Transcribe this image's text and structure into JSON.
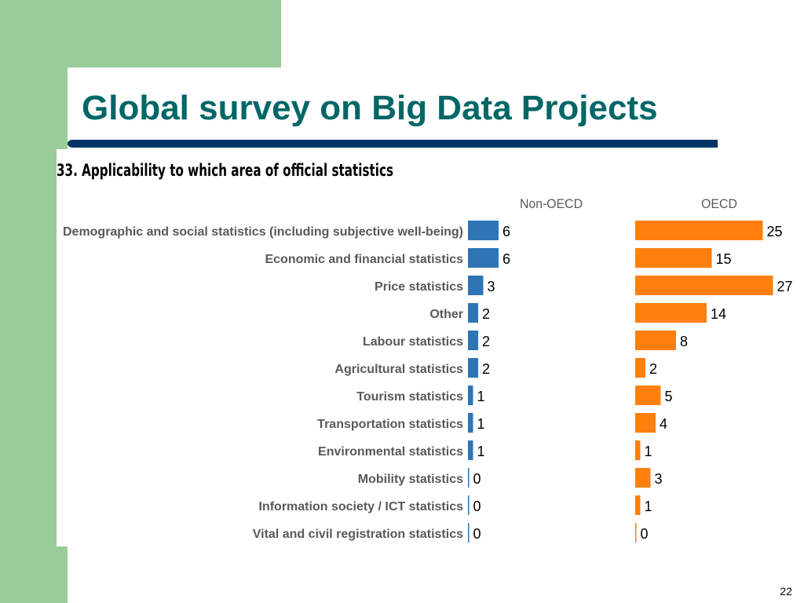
{
  "slide": {
    "title": "Global survey on Big Data Projects",
    "page_number": "22"
  },
  "colors": {
    "band": "#99cc99",
    "title": "#006666",
    "rule": "#003366",
    "non_oecd": "#2e75b6",
    "oecd": "#ff7f0e"
  },
  "chart_data": {
    "type": "bar",
    "orientation": "horizontal",
    "title": "33. Applicability to which area of official statistics",
    "categories": [
      "Demographic and social statistics (including subjective well-being)",
      "Economic and financial statistics",
      "Price statistics",
      "Other",
      "Labour statistics",
      "Agricultural statistics",
      "Tourism statistics",
      "Transportation statistics",
      "Environmental statistics",
      "Mobility statistics",
      "Information society / ICT statistics",
      "Vital and civil registration statistics"
    ],
    "series": [
      {
        "name": "Non-OECD",
        "values": [
          6,
          6,
          3,
          2,
          2,
          2,
          1,
          1,
          1,
          0,
          0,
          0
        ]
      },
      {
        "name": "OECD",
        "values": [
          25,
          15,
          27,
          14,
          8,
          2,
          5,
          4,
          1,
          3,
          1,
          0
        ]
      }
    ],
    "xlim": [
      0,
      27
    ],
    "data_labels": true,
    "grid": false
  }
}
